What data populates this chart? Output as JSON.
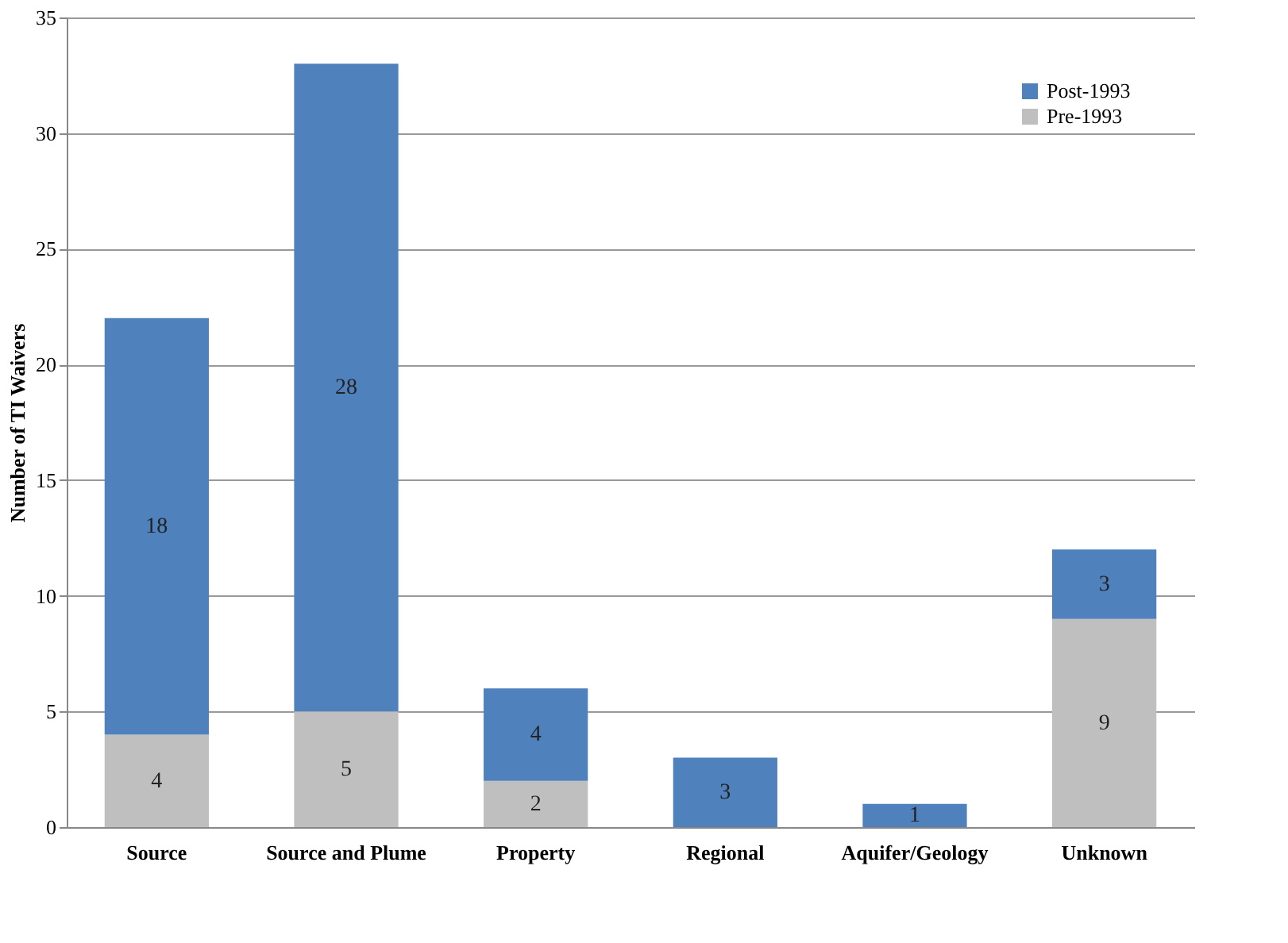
{
  "chart_data": {
    "type": "bar",
    "stacked": true,
    "ylabel": "Number of TI Waivers",
    "categories": [
      "Source",
      "Source and Plume",
      "Property",
      "Regional",
      "Aquifer/Geology",
      "Unknown"
    ],
    "series": [
      {
        "name": "Pre-1993",
        "color": "#bfbfbf",
        "values": [
          4,
          5,
          2,
          0,
          0,
          9
        ],
        "value_labels": [
          "4",
          "5",
          "2",
          null,
          null,
          "9"
        ]
      },
      {
        "name": "Post-1993",
        "color": "#4f81bd",
        "values": [
          18,
          28,
          4,
          3,
          1,
          3
        ],
        "value_labels": [
          "18",
          "28",
          "4",
          "3",
          "1",
          "3"
        ]
      }
    ],
    "ylim": [
      0,
      35
    ],
    "yticks": [
      0,
      5,
      10,
      15,
      20,
      25,
      30,
      35
    ],
    "grid": "y",
    "legend": "top right"
  }
}
